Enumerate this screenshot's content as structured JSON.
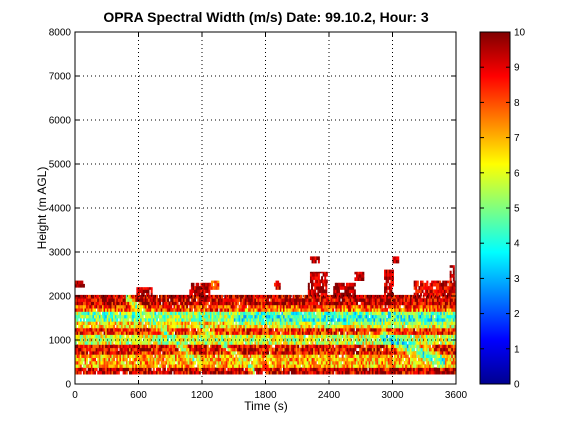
{
  "chart_data": {
    "type": "heatmap",
    "title": "OPRA Spectral Width (m/s)  Date: 99.10.2, Hour: 3",
    "xlabel": "Time (s)",
    "ylabel": "Height (m AGL)",
    "xlim": [
      0,
      3600
    ],
    "ylim": [
      0,
      8000
    ],
    "xticks": [
      0,
      600,
      1200,
      1800,
      2400,
      3000,
      3600
    ],
    "yticks": [
      0,
      1000,
      2000,
      3000,
      4000,
      5000,
      6000,
      7000,
      8000
    ],
    "grid": true,
    "colorbar": {
      "range": [
        0,
        10
      ],
      "ticks": [
        0,
        1,
        2,
        3,
        4,
        5,
        6,
        7,
        8,
        9,
        10
      ],
      "colormap": "jet"
    },
    "layers": [
      {
        "height_range": [
          250,
          400
        ],
        "time_range": [
          0,
          3600
        ],
        "value": 9.2
      },
      {
        "height_range": [
          400,
          650
        ],
        "time_range": [
          0,
          3600
        ],
        "value": 7.0
      },
      {
        "height_range": [
          650,
          900
        ],
        "time_range": [
          0,
          3600
        ],
        "value": 8.8
      },
      {
        "height_range": [
          900,
          1100
        ],
        "time_range": [
          0,
          3600
        ],
        "value": 5.8
      },
      {
        "height_range": [
          1100,
          1300
        ],
        "time_range": [
          0,
          3600
        ],
        "value": 8.4
      },
      {
        "height_range": [
          1300,
          1450
        ],
        "time_range": [
          0,
          3600
        ],
        "value": 6.6
      },
      {
        "height_range": [
          1450,
          1650
        ],
        "time_range": [
          0,
          3600
        ],
        "value": 5.2
      },
      {
        "height_range": [
          1650,
          1800
        ],
        "time_range": [
          0,
          3600
        ],
        "value": 8.2
      },
      {
        "height_range": [
          1800,
          2000
        ],
        "time_range": [
          0,
          3600
        ],
        "value": 9.3
      }
    ],
    "upper_echoes": [
      {
        "height_range": [
          2200,
          2350
        ],
        "time_range": [
          0,
          80
        ],
        "value": 9.5
      },
      {
        "height_range": [
          2000,
          2200
        ],
        "time_range": [
          580,
          720
        ],
        "value": 9.5
      },
      {
        "height_range": [
          2000,
          2300
        ],
        "time_range": [
          1080,
          1270
        ],
        "value": 9.5
      },
      {
        "height_range": [
          2150,
          2350
        ],
        "time_range": [
          1270,
          1350
        ],
        "value": 8.0
      },
      {
        "height_range": [
          2150,
          2350
        ],
        "time_range": [
          1880,
          1940
        ],
        "value": 9.0
      },
      {
        "height_range": [
          2000,
          2300
        ],
        "time_range": [
          2200,
          2380
        ],
        "value": 9.5
      },
      {
        "height_range": [
          2300,
          2550
        ],
        "time_range": [
          2220,
          2380
        ],
        "value": 9.5
      },
      {
        "height_range": [
          2750,
          2900
        ],
        "time_range": [
          2220,
          2300
        ],
        "value": 9.5
      },
      {
        "height_range": [
          2000,
          2300
        ],
        "time_range": [
          2440,
          2640
        ],
        "value": 9.5
      },
      {
        "height_range": [
          2350,
          2550
        ],
        "time_range": [
          2640,
          2720
        ],
        "value": 9.5
      },
      {
        "height_range": [
          2000,
          2600
        ],
        "time_range": [
          2920,
          3000
        ],
        "value": 9.5
      },
      {
        "height_range": [
          2750,
          2900
        ],
        "time_range": [
          3000,
          3060
        ],
        "value": 9.5
      },
      {
        "height_range": [
          2000,
          2350
        ],
        "time_range": [
          3200,
          3580
        ],
        "value": 9.0
      },
      {
        "height_range": [
          2350,
          2700
        ],
        "time_range": [
          3540,
          3580
        ],
        "value": 9.5
      }
    ],
    "bands": [
      {
        "name_hint": "descending low-width band 1",
        "time_range": [
          480,
          1200
        ],
        "height_range": [
          2000,
          400
        ],
        "width": 160,
        "value": 5.0
      },
      {
        "name_hint": "descending low-width band 2",
        "time_range": [
          1100,
          1700
        ],
        "height_range": [
          1500,
          300
        ],
        "width": 140,
        "value": 5.5
      },
      {
        "name_hint": "low-width layer",
        "time_range": [
          1500,
          3600
        ],
        "height_range": [
          1500,
          1500
        ],
        "width": 220,
        "value": 4.0
      },
      {
        "name_hint": "low-width patch",
        "time_range": [
          2900,
          3500
        ],
        "height_range": [
          1100,
          500
        ],
        "width": 220,
        "value": 3.8
      },
      {
        "name_hint": "low-width patch",
        "time_range": [
          120,
          800
        ],
        "height_range": [
          1550,
          1550
        ],
        "width": 150,
        "value": 4.6
      }
    ]
  }
}
